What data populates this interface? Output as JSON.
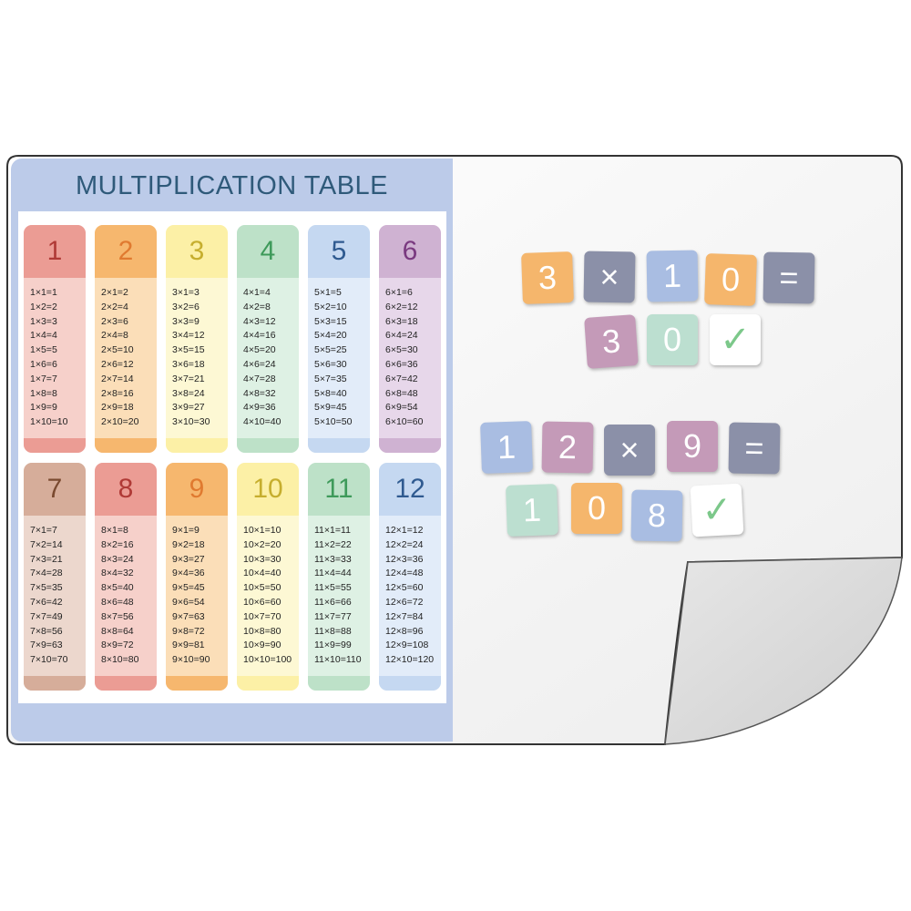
{
  "title": "MULTIPLICATION TABLE",
  "tables": [
    {
      "n": "1",
      "head": "#eb9c94",
      "body": "#f6d0ca",
      "ink": "#b03a36",
      "rows": [
        "1×1=1",
        "1×2=2",
        "1×3=3",
        "1×4=4",
        "1×5=5",
        "1×6=6",
        "1×7=7",
        "1×8=8",
        "1×9=9",
        "1×10=10"
      ]
    },
    {
      "n": "2",
      "head": "#f6b76e",
      "body": "#fbdeb8",
      "ink": "#e07a30",
      "rows": [
        "2×1=2",
        "2×2=4",
        "2×3=6",
        "2×4=8",
        "2×5=10",
        "2×6=12",
        "2×7=14",
        "2×8=16",
        "2×9=18",
        "2×10=20"
      ]
    },
    {
      "n": "3",
      "head": "#fcf0a6",
      "body": "#fdf8d4",
      "ink": "#c6ae2e",
      "rows": [
        "3×1=3",
        "3×2=6",
        "3×3=9",
        "3×4=12",
        "3×5=15",
        "3×6=18",
        "3×7=21",
        "3×8=24",
        "3×9=27",
        "3×10=30"
      ]
    },
    {
      "n": "4",
      "head": "#bde1c8",
      "body": "#def1e4",
      "ink": "#3e9a5a",
      "rows": [
        "4×1=4",
        "4×2=8",
        "4×3=12",
        "4×4=16",
        "4×5=20",
        "4×6=24",
        "4×7=28",
        "4×8=32",
        "4×9=36",
        "4×10=40"
      ]
    },
    {
      "n": "5",
      "head": "#c5d8f1",
      "body": "#e2ecf9",
      "ink": "#2f5a90",
      "rows": [
        "5×1=5",
        "5×2=10",
        "5×3=15",
        "5×4=20",
        "5×5=25",
        "5×6=30",
        "5×7=35",
        "5×8=40",
        "5×9=45",
        "5×10=50"
      ]
    },
    {
      "n": "6",
      "head": "#cfb2d2",
      "body": "#e7d7ea",
      "ink": "#7a3a80",
      "rows": [
        "6×1=6",
        "6×2=12",
        "6×3=18",
        "6×4=24",
        "6×5=30",
        "6×6=36",
        "6×7=42",
        "6×8=48",
        "6×9=54",
        "6×10=60"
      ]
    },
    {
      "n": "7",
      "head": "#d6ad9a",
      "body": "#ecd7cd",
      "ink": "#7a4a30",
      "rows": [
        "7×1=7",
        "7×2=14",
        "7×3=21",
        "7×4=28",
        "7×5=35",
        "7×6=42",
        "7×7=49",
        "7×8=56",
        "7×9=63",
        "7×10=70"
      ]
    },
    {
      "n": "8",
      "head": "#eb9c94",
      "body": "#f6d0ca",
      "ink": "#b03a36",
      "rows": [
        "8×1=8",
        "8×2=16",
        "8×3=24",
        "8×4=32",
        "8×5=40",
        "8×6=48",
        "8×7=56",
        "8×8=64",
        "8×9=72",
        "8×10=80"
      ]
    },
    {
      "n": "9",
      "head": "#f6b76e",
      "body": "#fbdeb8",
      "ink": "#e07a30",
      "rows": [
        "9×1=9",
        "9×2=18",
        "9×3=27",
        "9×4=36",
        "9×5=45",
        "9×6=54",
        "9×7=63",
        "9×8=72",
        "9×9=81",
        "9×10=90"
      ]
    },
    {
      "n": "10",
      "head": "#fcf0a6",
      "body": "#fdf8d4",
      "ink": "#c6ae2e",
      "rows": [
        "10×1=10",
        "10×2=20",
        "10×3=30",
        "10×4=40",
        "10×5=50",
        "10×6=60",
        "10×7=70",
        "10×8=80",
        "10×9=90",
        "10×10=100"
      ]
    },
    {
      "n": "11",
      "head": "#bde1c8",
      "body": "#def1e4",
      "ink": "#3e9a5a",
      "rows": [
        "11×1=11",
        "11×2=22",
        "11×3=33",
        "11×4=44",
        "11×5=55",
        "11×6=66",
        "11×7=77",
        "11×8=88",
        "11×9=99",
        "11×10=110"
      ]
    },
    {
      "n": "12",
      "head": "#c5d8f1",
      "body": "#e2ecf9",
      "ink": "#2f5a90",
      "rows": [
        "12×1=12",
        "12×2=24",
        "12×3=36",
        "12×4=48",
        "12×5=60",
        "12×6=72",
        "12×7=84",
        "12×8=96",
        "12×9=108",
        "12×10=120"
      ]
    }
  ],
  "tiles": [
    {
      "t": "3",
      "c": "#f5b66c"
    },
    {
      "t": "×",
      "c": "#8b90a8"
    },
    {
      "t": "1",
      "c": "#a9bde2"
    },
    {
      "t": "0",
      "c": "#f5b66c"
    },
    {
      "t": "=",
      "c": "#8b90a8"
    },
    {
      "t": "3",
      "c": "#c49ab8"
    },
    {
      "t": "0",
      "c": "#bcdfd0"
    },
    {
      "t": "✓",
      "c": "#ffffff",
      "icon": "checkmark-icon"
    },
    {
      "t": "1",
      "c": "#a9bde2"
    },
    {
      "t": "2",
      "c": "#c49ab8"
    },
    {
      "t": "×",
      "c": "#8b90a8"
    },
    {
      "t": "9",
      "c": "#c49ab8"
    },
    {
      "t": "=",
      "c": "#8b90a8"
    },
    {
      "t": "1",
      "c": "#bcdfd0"
    },
    {
      "t": "0",
      "c": "#f5b66c"
    },
    {
      "t": "8",
      "c": "#a9bde2"
    },
    {
      "t": "✓",
      "c": "#ffffff",
      "icon": "checkmark-icon"
    }
  ]
}
